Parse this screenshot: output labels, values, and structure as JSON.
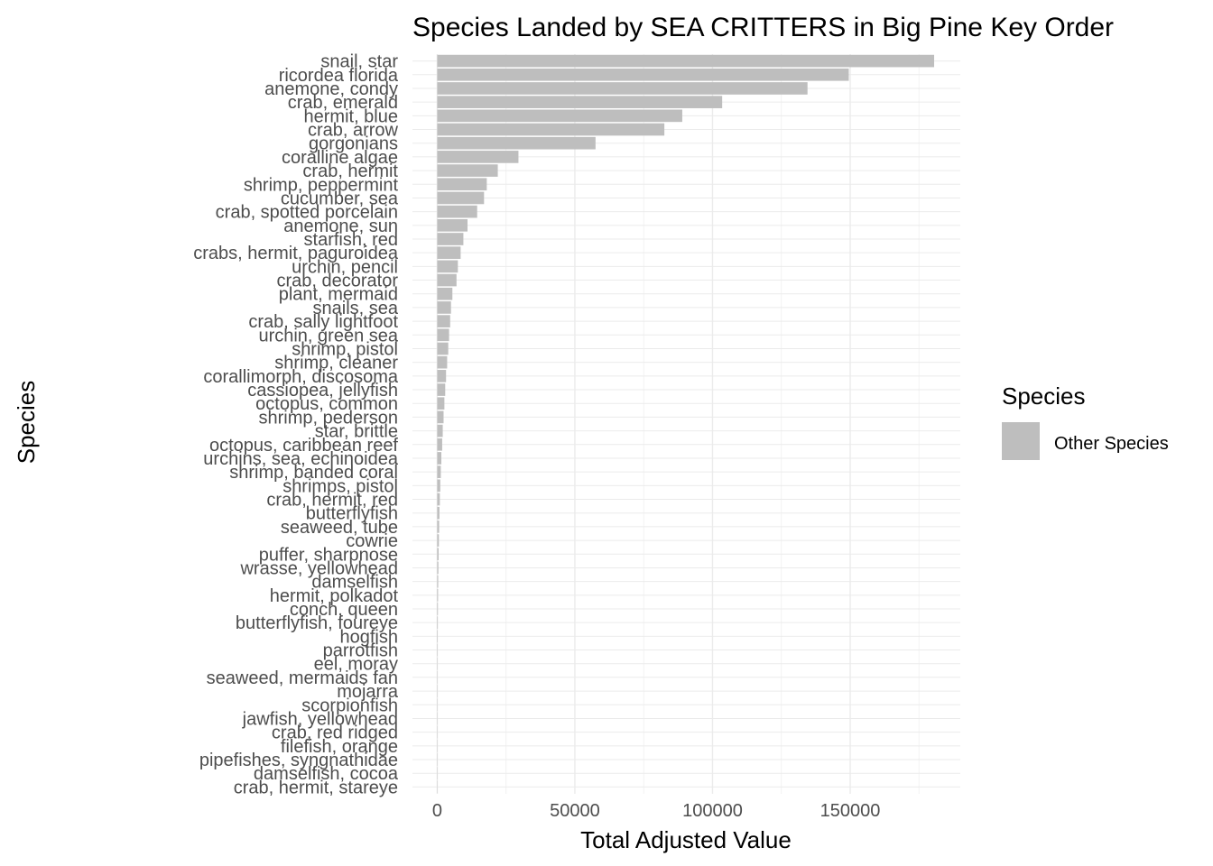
{
  "chart_data": {
    "type": "bar",
    "orientation": "horizontal",
    "title": "Species Landed by SEA CRITTERS in Big Pine Key Order",
    "xlabel": "Total Adjusted Value",
    "ylabel": "Species",
    "xlim": [
      -9000,
      190000
    ],
    "x_ticks": [
      0,
      50000,
      100000,
      150000
    ],
    "x_tick_labels": [
      "0",
      "50000",
      "100000",
      "150000"
    ],
    "grid": true,
    "legend": {
      "title": "Species",
      "position": "right",
      "entries": [
        "Other Species"
      ]
    },
    "bar_color": "#bebebe",
    "categories": [
      "snail, star",
      "ricordea florida",
      "anemone, condy",
      "crab, emerald",
      "hermit, blue",
      "crab, arrow",
      "gorgonians",
      "coralline algae",
      "crab, hermit",
      "shrimp, peppermint",
      "cucumber, sea",
      "crab, spotted porcelain",
      "anemone, sun",
      "starfish, red",
      "crabs, hermit, paguroidea",
      "urchin, pencil",
      "crab, decorator",
      "plant, mermaid",
      "snails, sea",
      "crab, sally lightfoot",
      "urchin, green sea",
      "shrimp, pistol",
      "shrimp, cleaner",
      "corallimorph, discosoma",
      "cassiopea, jellyfish",
      "octopus, common",
      "shrimp, pederson",
      "star, brittle",
      "octopus, caribbean reef",
      "urchins, sea, echinoidea",
      "shrimp, banded coral",
      "shrimps, pistol",
      "crab, hermit, red",
      "butterflyfish",
      "seaweed, tube",
      "cowrie",
      "puffer, sharpnose",
      "wrasse, yellowhead",
      "damselfish",
      "hermit, polkadot",
      "conch, queen",
      "butterflyfish, foureye",
      "hogfish",
      "parrotfish",
      "eel, moray",
      "seaweed, mermaids fan",
      "mojarra",
      "scorpionfish",
      "jawfish, yellowhead",
      "crab, red ridged",
      "filefish, orange",
      "pipefishes, syngnathidae",
      "damselfish, cocoa",
      "crab, hermit, stareye"
    ],
    "values": [
      180500,
      149500,
      134500,
      103500,
      89000,
      82500,
      57500,
      29500,
      22000,
      18000,
      17000,
      14500,
      11000,
      9500,
      8500,
      7500,
      7000,
      5500,
      5000,
      4700,
      4300,
      4000,
      3600,
      3200,
      2900,
      2600,
      2300,
      2000,
      1800,
      1500,
      1300,
      1100,
      950,
      800,
      700,
      600,
      500,
      420,
      350,
      290,
      240,
      200,
      160,
      130,
      100,
      80,
      60,
      45,
      35,
      25,
      18,
      12,
      8,
      4
    ]
  }
}
